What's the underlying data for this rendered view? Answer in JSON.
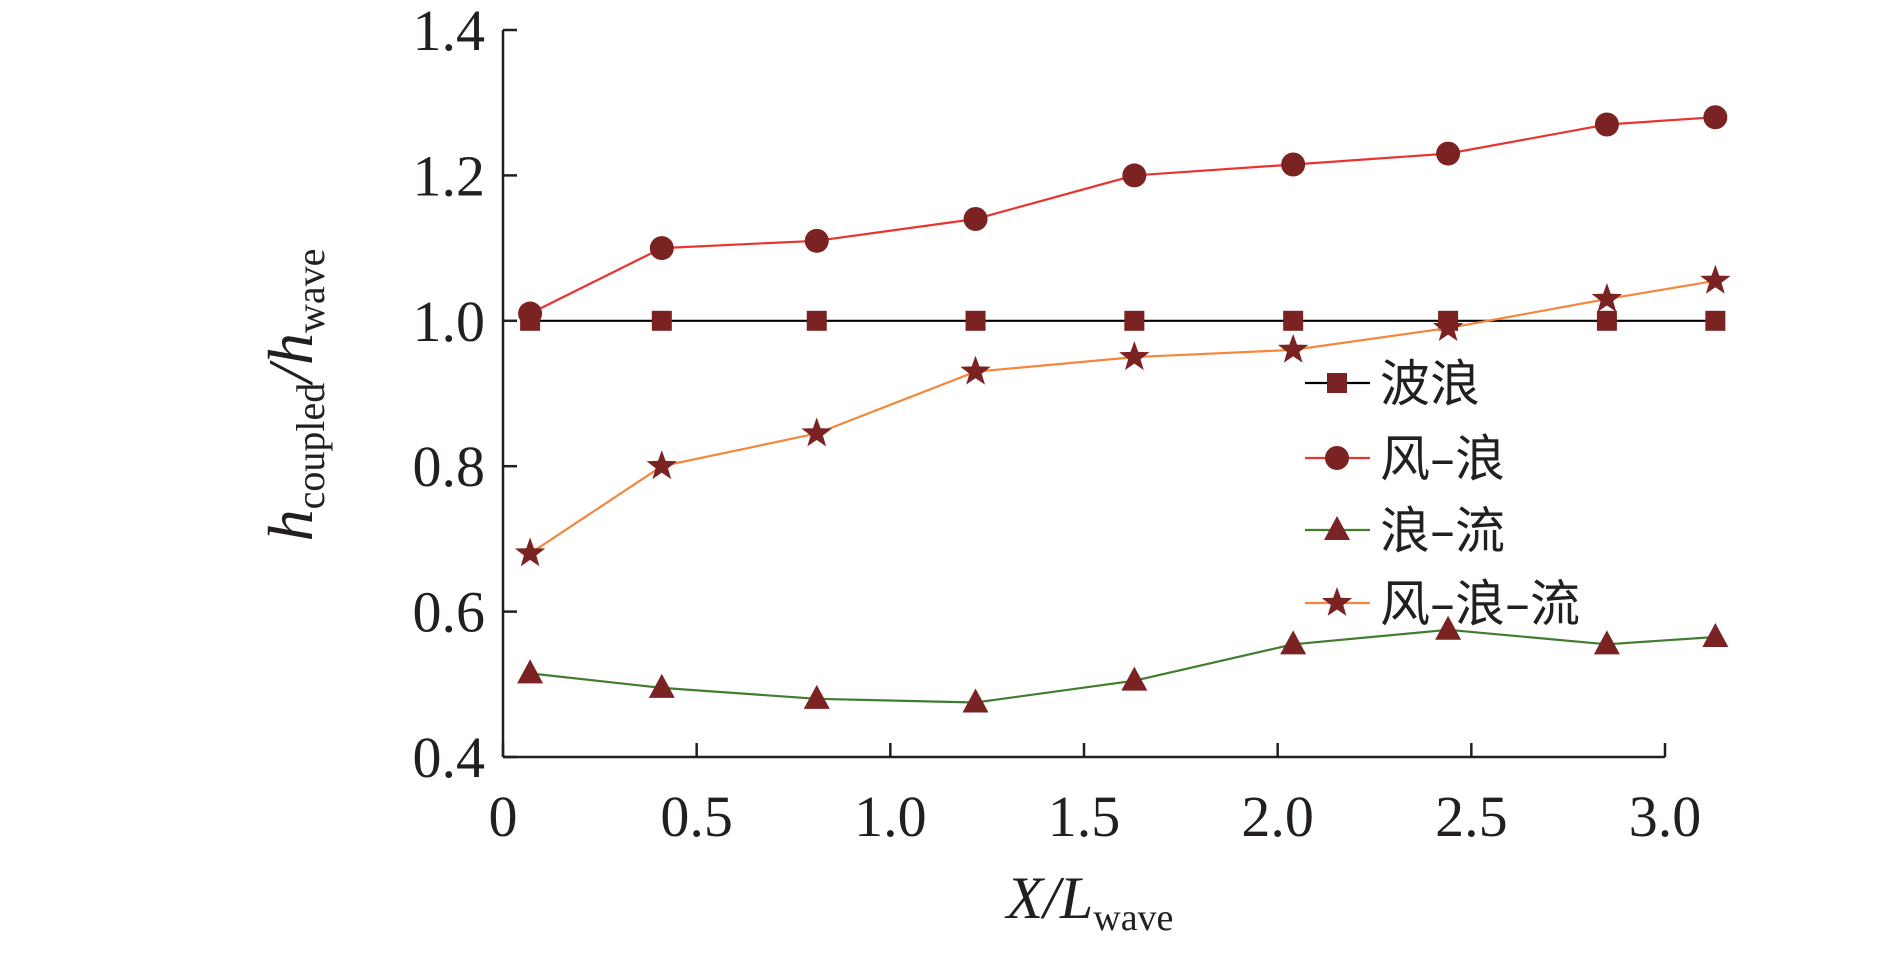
{
  "chart_data": {
    "type": "line",
    "xlabel": {
      "main": "X/L",
      "sub": "wave"
    },
    "ylabel": {
      "main": "h",
      "sub": "coupled",
      "sep": "/h",
      "sub2": "wave"
    },
    "xlim": [
      0,
      3.0
    ],
    "ylim": [
      0.4,
      1.4
    ],
    "xticks": [
      "0",
      "0.5",
      "1.0",
      "1.5",
      "2.0",
      "2.5",
      "3.0"
    ],
    "yticks": [
      "0.4",
      "0.6",
      "0.8",
      "1.0",
      "1.2",
      "1.4"
    ],
    "x": [
      0.07,
      0.41,
      0.81,
      1.22,
      1.63,
      2.04,
      2.44,
      2.85,
      3.13
    ],
    "series": [
      {
        "name": "波浪",
        "marker": "square",
        "color": "#000000",
        "marker_color": "#7b2323",
        "values": [
          1.0,
          1.0,
          1.0,
          1.0,
          1.0,
          1.0,
          1.0,
          1.0,
          1.0
        ]
      },
      {
        "name": "风–浪",
        "marker": "circle",
        "color": "#e8342f",
        "marker_color": "#7b2323",
        "values": [
          1.01,
          1.1,
          1.11,
          1.14,
          1.2,
          1.215,
          1.23,
          1.27,
          1.28
        ]
      },
      {
        "name": "浪–流",
        "marker": "triangle",
        "color": "#3f7d2f",
        "marker_color": "#7b2323",
        "values": [
          0.515,
          0.495,
          0.48,
          0.475,
          0.505,
          0.555,
          0.575,
          0.555,
          0.565
        ]
      },
      {
        "name": "风–浪–流",
        "marker": "star",
        "color": "#f4873b",
        "marker_color": "#7b2323",
        "values": [
          0.68,
          0.8,
          0.845,
          0.93,
          0.95,
          0.96,
          0.99,
          1.03,
          1.055
        ]
      }
    ],
    "legend": "right-center",
    "grid": false
  }
}
